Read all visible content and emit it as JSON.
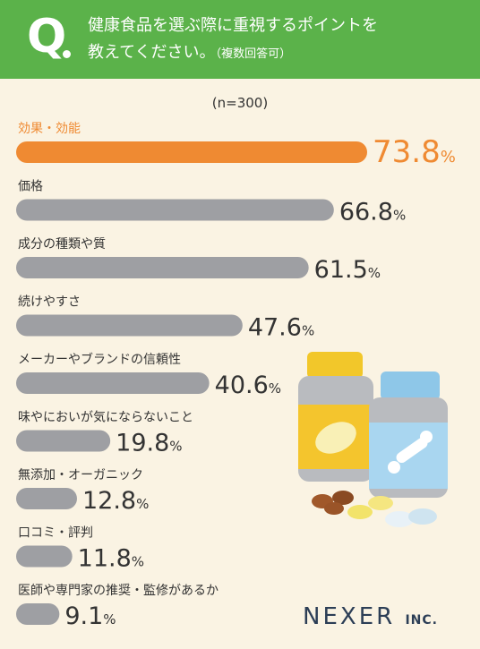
{
  "question": {
    "mark": "Q",
    "line1": "健康食品を選ぶ際に重視するポイントを",
    "line2": "教えてください。",
    "note": "（複数回答可）"
  },
  "sample_label": "(n=300)",
  "brand": {
    "name": "NEXER",
    "suffix": "INC."
  },
  "colors": {
    "header": "#5bb24a",
    "highlight_bar": "#ef8a32",
    "bar": "#9e9fa3",
    "highlight_text": "#ef8a32",
    "text": "#333333",
    "background": "#faf3e3"
  },
  "chart_data": {
    "type": "bar",
    "orientation": "horizontal",
    "categories": [
      "効果・効能",
      "価格",
      "成分の種類や質",
      "続けやすさ",
      "メーカーやブランドの信頼性",
      "味やにおいが気にならないこと",
      "無添加・オーガニック",
      "口コミ・評判",
      "医師や専門家の推奨・監修があるか"
    ],
    "values": [
      73.8,
      66.8,
      61.5,
      47.6,
      40.6,
      19.8,
      12.8,
      11.8,
      9.1
    ],
    "value_labels": [
      "73.8",
      "66.8",
      "61.5",
      "47.6",
      "40.6",
      "19.8",
      "12.8",
      "11.8",
      "9.1"
    ],
    "unit": "%",
    "highlight_index": 0
  }
}
